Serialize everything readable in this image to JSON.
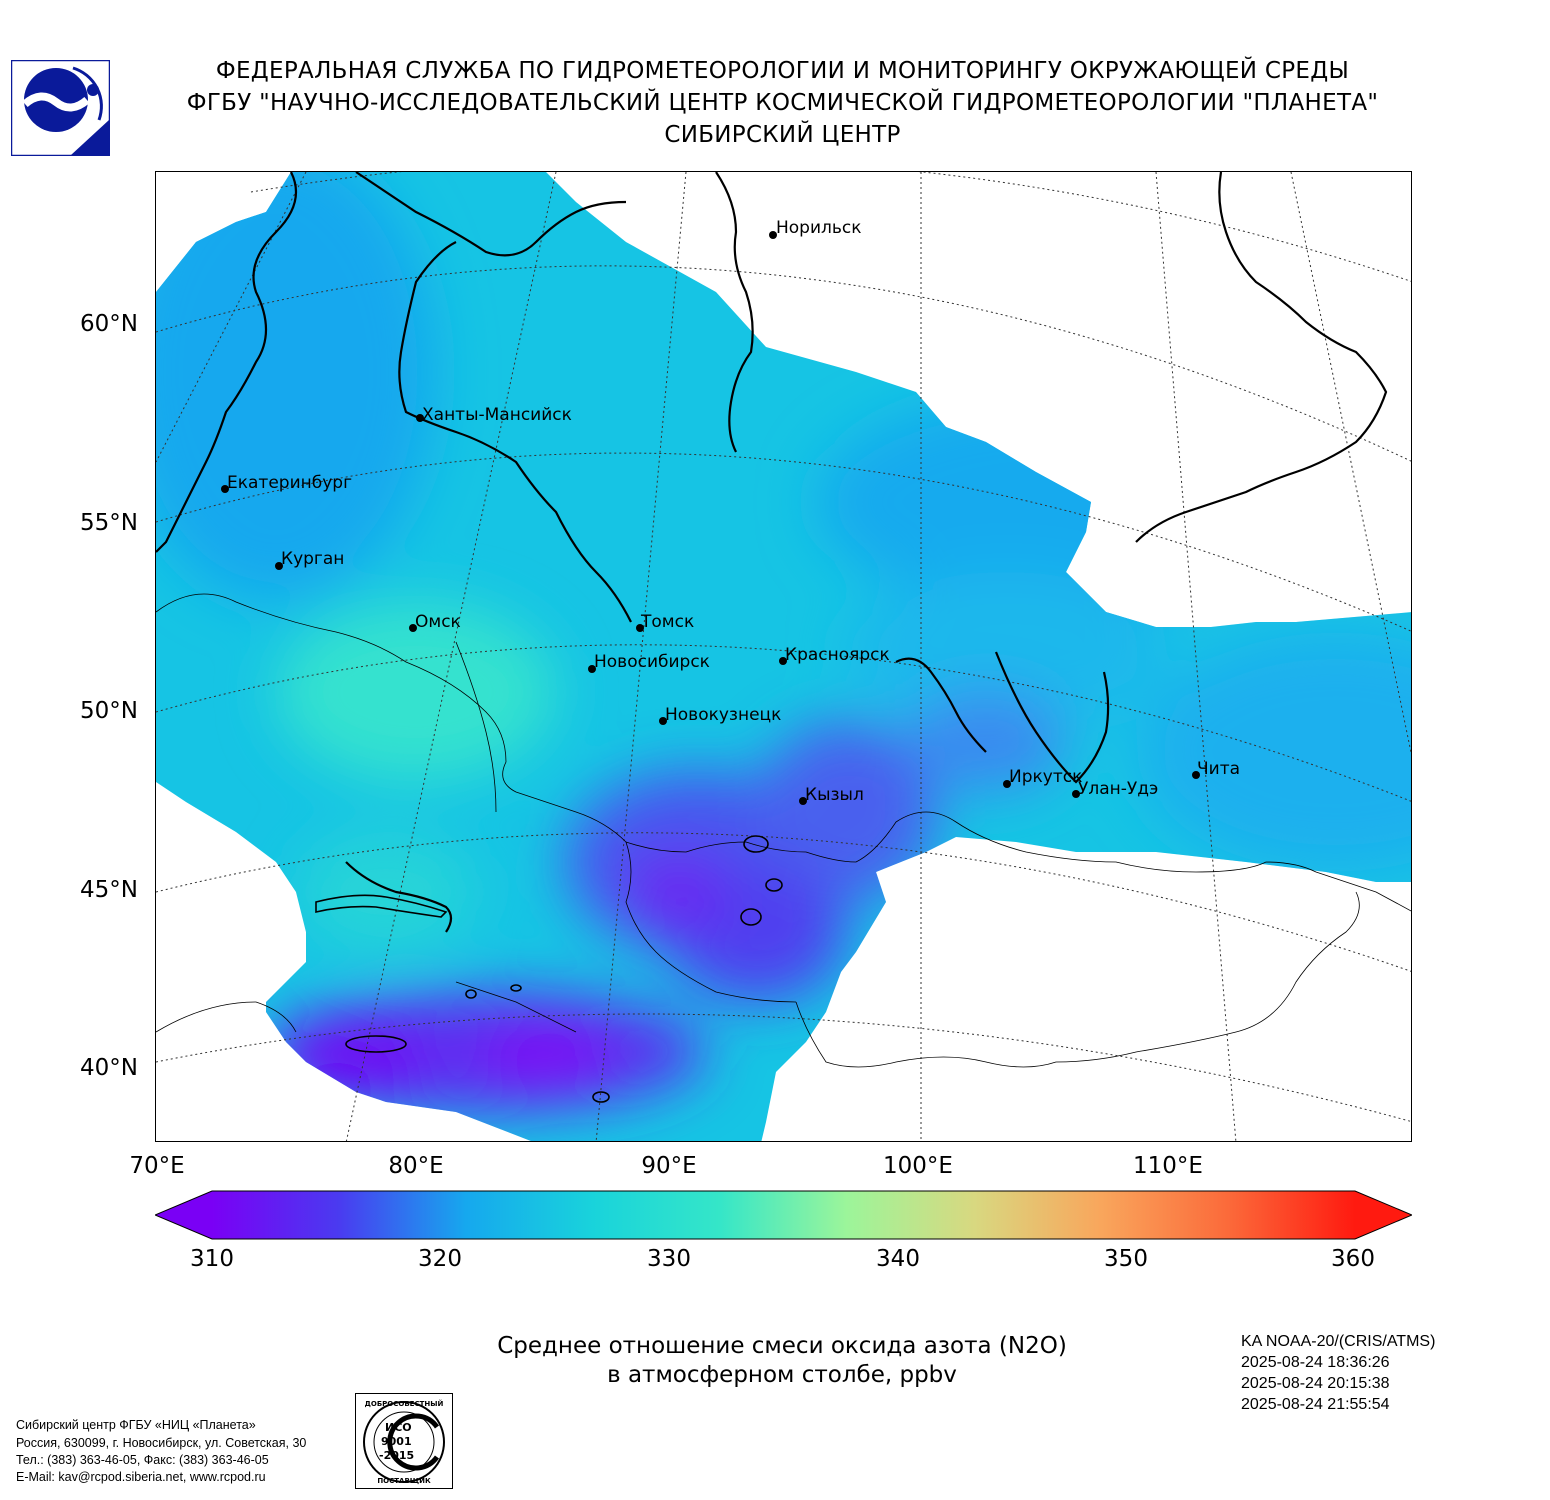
{
  "header": {
    "line1": "ФЕДЕРАЛЬНАЯ СЛУЖБА ПО ГИДРОМЕТЕОРОЛОГИИ И МОНИТОРИНГУ ОКРУЖАЮЩЕЙ СРЕДЫ",
    "line2": "ФГБУ \"НАУЧНО-ИССЛЕДОВАТЕЛЬСКИЙ ЦЕНТР КОСМИЧЕСКОЙ ГИДРОМЕТЕОРОЛОГИИ \"ПЛАНЕТА\"",
    "line3": "СИБИРСКИЙ ЦЕНТР"
  },
  "map": {
    "lat_labels": [
      "60°N",
      "55°N",
      "50°N",
      "45°N",
      "40°N"
    ],
    "lon_labels": [
      "70°E",
      "80°E",
      "90°E",
      "100°E",
      "110°E"
    ],
    "cities": [
      "Норильск",
      "Ханты-Мансийск",
      "Екатеринбург",
      "Курган",
      "Омск",
      "Томск",
      "Новосибирск",
      "Красноярск",
      "Новокузнецк",
      "Иркутск",
      "Улан-Удэ",
      "Чита",
      "Кызыл"
    ]
  },
  "colorbar": {
    "ticks": [
      "310",
      "320",
      "330",
      "340",
      "350",
      "360"
    ],
    "min": 310,
    "max": 360,
    "colors": [
      "#7a00f5",
      "#4a3bf0",
      "#16a8ee",
      "#19d3db",
      "#35e6c8",
      "#9cf59a",
      "#d8d880",
      "#f9a65c",
      "#fb6a3a",
      "#ff1a10"
    ]
  },
  "caption": {
    "line1": "Среднее отношение смеси оксида азота (N2O)",
    "line2": "в атмосферном столбе, ppbv"
  },
  "satellite": {
    "name": "KA NOAA-20/(CRIS/ATMS)",
    "time1": "2025-08-24 18:36:26",
    "time2": "2025-08-24 20:15:38",
    "time3": "2025-08-24 21:55:54"
  },
  "footer": {
    "line1": "Сибирский центр ФГБУ «НИЦ «Планета»",
    "line2": "Россия, 630099, г. Новосибирск, ул. Советская, 30",
    "line3": "Тел.: (383) 363-46-05, Факс: (383) 363-46-05",
    "line4": "E-Mail: kav@rcpod.siberia.net, www.rcpod.ru"
  },
  "badge": {
    "top": "ДОБРОСОВЕСТНЫЙ",
    "iso": "ИСО",
    "num": "9001",
    "year": "-2015",
    "bottom": "ПОСТАВЩИК"
  }
}
